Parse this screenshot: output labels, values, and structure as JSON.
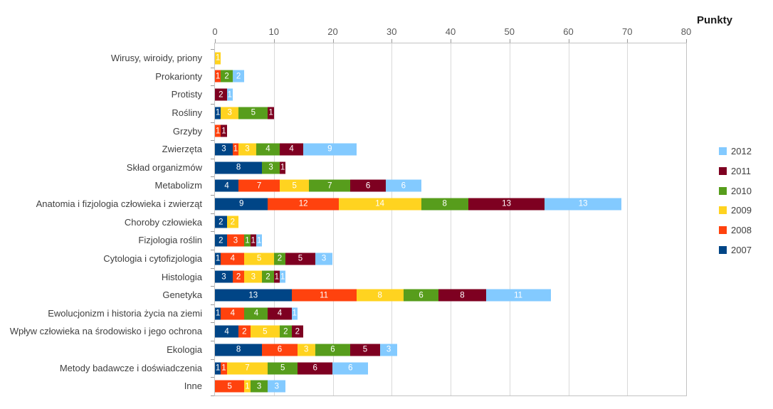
{
  "title": "Punkty",
  "chart_data": {
    "type": "bar",
    "orientation": "horizontal",
    "stacked": true,
    "title": "Punkty",
    "xlabel": "Punkty",
    "ylabel": "",
    "xlim": [
      0,
      80
    ],
    "x_ticks": [
      0,
      10,
      20,
      30,
      40,
      50,
      60,
      70,
      80
    ],
    "grid": true,
    "legend_position": "right",
    "legend_order": [
      "2012",
      "2011",
      "2010",
      "2009",
      "2008",
      "2007"
    ],
    "categories": [
      "Wirusy, wiroidy, priony",
      "Prokarionty",
      "Protisty",
      "Rośliny",
      "Grzyby",
      "Zwierzęta",
      "Skład organizmów",
      "Metabolizm",
      "Anatomia i fizjologia człowieka i zwierząt",
      "Choroby człowieka",
      "Fizjologia roślin",
      "Cytologia i cytofizjologia",
      "Histologia",
      "Genetyka",
      "Ewolucjonizm i historia życia na ziemi",
      "Wpływ człowieka na środowisko i jego ochrona",
      "Ekologia",
      "Metody badawcze i doświadczenia",
      "Inne"
    ],
    "series": [
      {
        "name": "2007",
        "color": "#004586",
        "values": [
          0,
          0,
          0,
          1,
          0,
          3,
          8,
          4,
          9,
          2,
          2,
          1,
          3,
          13,
          1,
          4,
          8,
          1,
          0
        ]
      },
      {
        "name": "2008",
        "color": "#FF420E",
        "values": [
          0,
          1,
          0,
          0,
          1,
          1,
          0,
          7,
          12,
          0,
          3,
          4,
          2,
          11,
          4,
          2,
          6,
          1,
          5
        ]
      },
      {
        "name": "2009",
        "color": "#FFD320",
        "values": [
          1,
          0,
          0,
          3,
          0,
          3,
          0,
          5,
          14,
          2,
          0,
          5,
          3,
          8,
          0,
          5,
          3,
          7,
          1
        ]
      },
      {
        "name": "2010",
        "color": "#579D1C",
        "values": [
          0,
          2,
          0,
          5,
          0,
          4,
          3,
          7,
          8,
          0,
          1,
          2,
          2,
          6,
          4,
          2,
          6,
          5,
          3
        ]
      },
      {
        "name": "2011",
        "color": "#7E0021",
        "values": [
          0,
          0,
          2,
          1,
          1,
          4,
          1,
          6,
          13,
          0,
          1,
          5,
          1,
          8,
          4,
          2,
          5,
          6,
          0
        ]
      },
      {
        "name": "2012",
        "color": "#83CAFF",
        "values": [
          0,
          2,
          1,
          0,
          0,
          9,
          0,
          6,
          13,
          0,
          1,
          3,
          1,
          11,
          1,
          0,
          3,
          6,
          3
        ]
      }
    ]
  }
}
